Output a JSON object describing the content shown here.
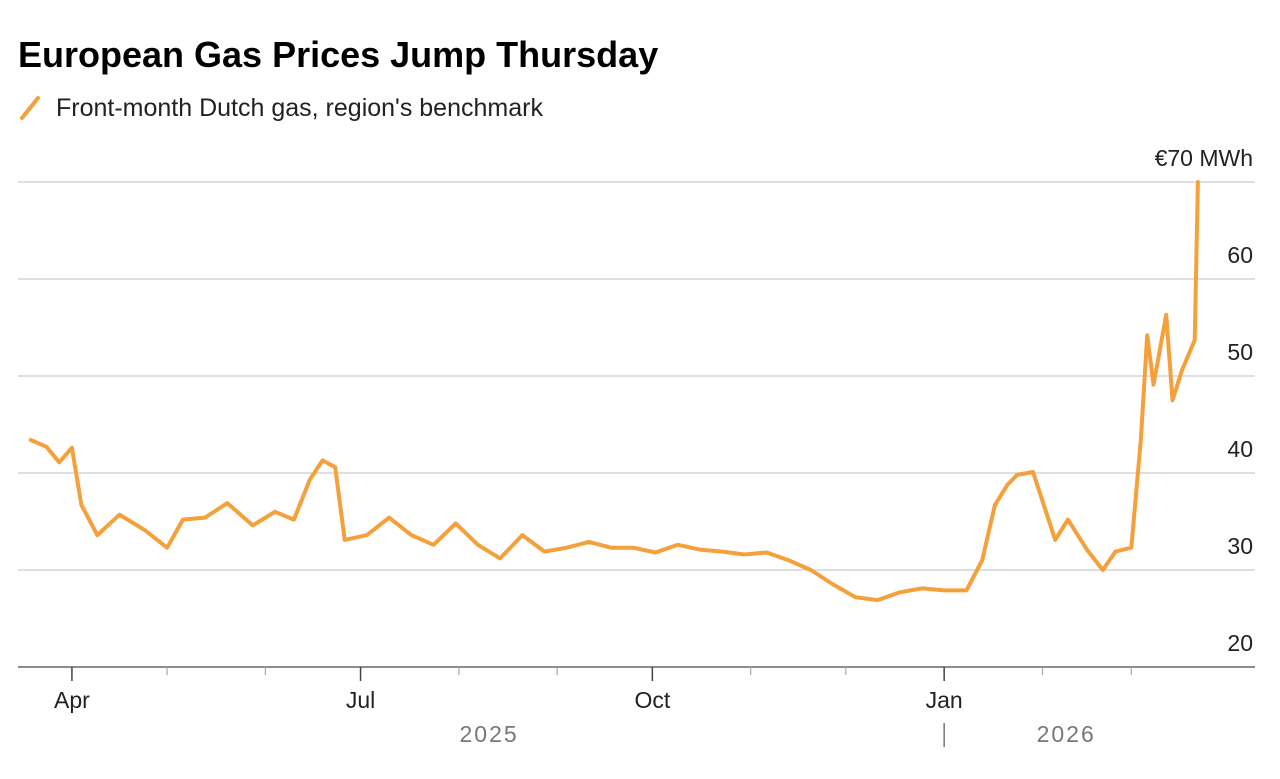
{
  "chart_data": {
    "type": "line",
    "title": "European Gas Prices Jump Thursday",
    "series": [
      {
        "name": "Front-month Dutch gas, region's benchmark",
        "color": "#f5a03a",
        "x": [
          "2025-03-19",
          "2025-03-24",
          "2025-03-28",
          "2025-04-01",
          "2025-04-04",
          "2025-04-09",
          "2025-04-16",
          "2025-04-24",
          "2025-05-01",
          "2025-05-06",
          "2025-05-13",
          "2025-05-20",
          "2025-05-28",
          "2025-06-04",
          "2025-06-10",
          "2025-06-15",
          "2025-06-19",
          "2025-06-23",
          "2025-06-26",
          "2025-07-03",
          "2025-07-10",
          "2025-07-17",
          "2025-07-24",
          "2025-07-31",
          "2025-08-07",
          "2025-08-14",
          "2025-08-21",
          "2025-08-28",
          "2025-09-04",
          "2025-09-11",
          "2025-09-18",
          "2025-09-25",
          "2025-10-02",
          "2025-10-09",
          "2025-10-16",
          "2025-10-23",
          "2025-10-30",
          "2025-11-06",
          "2025-11-13",
          "2025-11-20",
          "2025-11-27",
          "2025-12-04",
          "2025-12-11",
          "2025-12-18",
          "2025-12-25",
          "2026-01-01",
          "2026-01-08",
          "2026-01-13",
          "2026-01-17",
          "2026-01-21",
          "2026-01-24",
          "2026-01-29",
          "2026-02-05",
          "2026-02-09",
          "2026-02-15",
          "2026-02-20",
          "2026-02-24",
          "2026-03-01",
          "2026-03-04",
          "2026-03-06",
          "2026-03-08",
          "2026-03-12",
          "2026-03-14",
          "2026-03-17",
          "2026-03-21",
          "2026-03-22"
        ],
        "values": [
          43.4,
          42.7,
          41.1,
          42.6,
          36.7,
          33.6,
          35.7,
          34.1,
          32.3,
          35.2,
          35.4,
          36.9,
          34.6,
          36.0,
          35.2,
          39.3,
          41.3,
          40.6,
          33.1,
          33.6,
          35.4,
          33.6,
          32.6,
          34.8,
          32.6,
          31.2,
          33.6,
          31.9,
          32.3,
          32.9,
          32.3,
          32.3,
          31.8,
          32.6,
          32.1,
          31.9,
          31.6,
          31.8,
          31.0,
          30.0,
          28.5,
          27.2,
          26.9,
          27.7,
          28.1,
          27.9,
          27.9,
          31.0,
          36.7,
          38.8,
          39.8,
          40.1,
          33.1,
          35.2,
          32.1,
          30.0,
          31.9,
          32.3,
          43.4,
          54.2,
          49.1,
          56.3,
          47.5,
          50.6,
          53.7,
          70.0
        ]
      }
    ],
    "xlim": [
      "2025-03-15",
      "2026-04-09"
    ],
    "xticks": [
      {
        "value": "2025-04-01",
        "label": "Apr"
      },
      {
        "value": "2025-07-01",
        "label": "Jul"
      },
      {
        "value": "2025-10-01",
        "label": "Oct"
      },
      {
        "value": "2026-01-01",
        "label": "Jan"
      }
    ],
    "xminor_ticks": [
      "2025-05-01",
      "2025-06-01",
      "2025-08-01",
      "2025-09-01",
      "2025-11-01",
      "2025-12-01",
      "2026-02-01",
      "2026-03-01"
    ],
    "years": [
      "2025",
      "2026"
    ],
    "ylim": [
      20,
      70
    ],
    "yticks": [
      20,
      30,
      40,
      50,
      60,
      {
        "value": 70,
        "label": "€70 MWh"
      }
    ],
    "grid": true
  }
}
